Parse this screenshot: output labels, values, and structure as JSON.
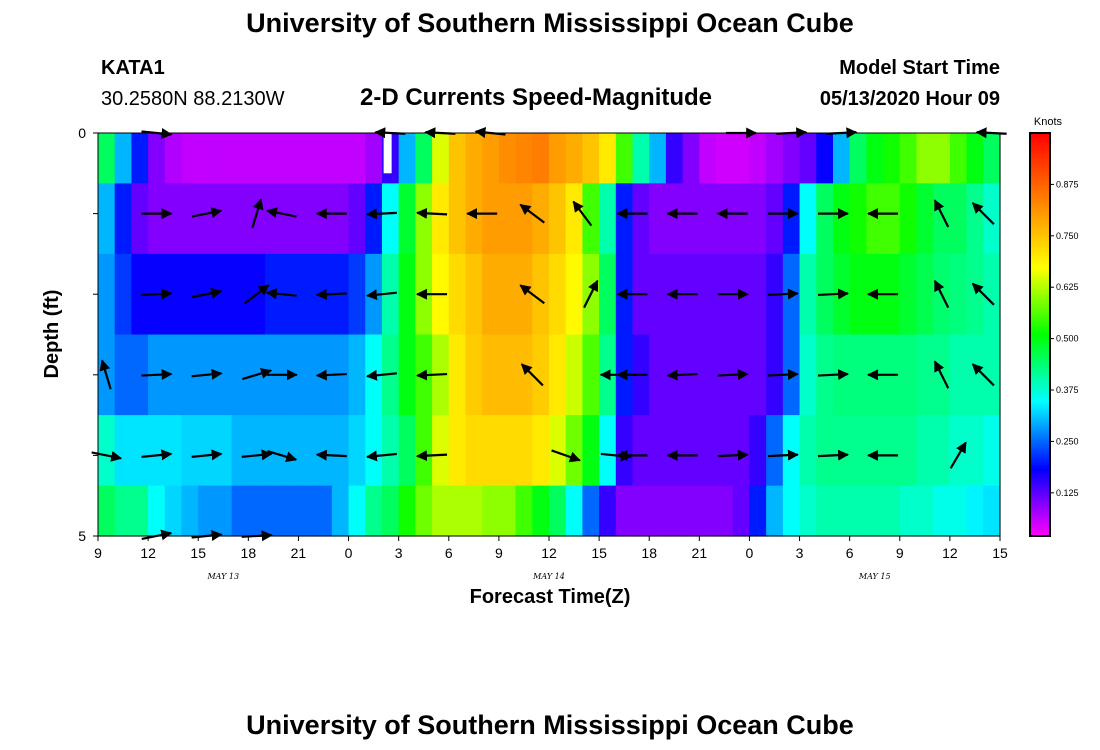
{
  "header": {
    "title": "University of Southern Mississippi Ocean Cube",
    "station": "KATA1",
    "location": "30.2580N 88.2130W",
    "subtitle": "2-D Currents Speed-Magnitude",
    "model_start_label": "Model Start Time",
    "model_start_value": "05/13/2020 Hour 09"
  },
  "footer": {
    "title": "University of Southern Mississippi Ocean Cube"
  },
  "chart_data": {
    "type": "heatmap",
    "title": "2-D Currents Speed-Magnitude",
    "xlabel": "Forecast Time(Z)",
    "ylabel": "Depth (ft)",
    "ylim": [
      0,
      5
    ],
    "xlim_hours": [
      0,
      54
    ],
    "x_ticks": [
      "9",
      "12",
      "15",
      "18",
      "21",
      "0",
      "3",
      "6",
      "9",
      "12",
      "15",
      "18",
      "21",
      "0",
      "3",
      "6",
      "9",
      "12",
      "15"
    ],
    "date_labels": [
      {
        "text": "MAY 13",
        "hour": 7.5
      },
      {
        "text": "MAY 14",
        "hour": 27
      },
      {
        "text": "MAY 15",
        "hour": 46.5
      }
    ],
    "y_tick_labels": [
      "0",
      "5"
    ],
    "y_tick_values": [
      0,
      1,
      2,
      3,
      4,
      5
    ],
    "colorbar": {
      "label": "Knots",
      "ticks": [
        "0.875",
        "0.750",
        "0.625",
        "0.500",
        "0.375",
        "0.250",
        "0.125"
      ],
      "tick_values": [
        0.875,
        0.75,
        0.625,
        0.5,
        0.375,
        0.25,
        0.125
      ],
      "range": [
        0.02,
        1.0
      ],
      "colors": [
        "#ff00ff",
        "#8000ff",
        "#0000ff",
        "#0080ff",
        "#00ffff",
        "#00ff80",
        "#00ff00",
        "#80ff00",
        "#ffff00",
        "#ffc000",
        "#ff8000",
        "#ff4000",
        "#ff0000"
      ]
    },
    "rows_depth_ft": [
      0.25,
      1.0,
      2.0,
      3.0,
      4.0,
      4.75
    ],
    "cells_per_row": 54,
    "speed_knots": [
      [
        0.45,
        0.3,
        0.2,
        0.1,
        0.07,
        0.06,
        0.06,
        0.06,
        0.06,
        0.06,
        0.06,
        0.06,
        0.06,
        0.06,
        0.06,
        0.06,
        0.08,
        0.15,
        0.3,
        0.45,
        0.65,
        0.75,
        0.78,
        0.8,
        0.82,
        0.83,
        0.84,
        0.8,
        0.78,
        0.75,
        0.7,
        0.55,
        0.4,
        0.3,
        0.15,
        0.1,
        0.06,
        0.05,
        0.05,
        0.06,
        0.08,
        0.1,
        0.12,
        0.18,
        0.3,
        0.45,
        0.5,
        0.52,
        0.55,
        0.6,
        0.6,
        0.55,
        0.5,
        0.45
      ],
      [
        0.3,
        0.2,
        0.12,
        0.1,
        0.1,
        0.1,
        0.1,
        0.1,
        0.1,
        0.1,
        0.1,
        0.1,
        0.1,
        0.1,
        0.1,
        0.12,
        0.2,
        0.35,
        0.48,
        0.6,
        0.7,
        0.75,
        0.78,
        0.8,
        0.8,
        0.8,
        0.78,
        0.75,
        0.7,
        0.55,
        0.4,
        0.2,
        0.12,
        0.1,
        0.1,
        0.1,
        0.1,
        0.1,
        0.1,
        0.1,
        0.12,
        0.2,
        0.35,
        0.45,
        0.5,
        0.52,
        0.55,
        0.55,
        0.52,
        0.48,
        0.45,
        0.45,
        0.42,
        0.38
      ],
      [
        0.28,
        0.22,
        0.18,
        0.18,
        0.18,
        0.18,
        0.18,
        0.18,
        0.18,
        0.18,
        0.2,
        0.2,
        0.2,
        0.2,
        0.2,
        0.22,
        0.28,
        0.4,
        0.5,
        0.6,
        0.68,
        0.72,
        0.75,
        0.78,
        0.78,
        0.78,
        0.75,
        0.72,
        0.68,
        0.6,
        0.45,
        0.2,
        0.12,
        0.12,
        0.12,
        0.12,
        0.12,
        0.12,
        0.12,
        0.12,
        0.15,
        0.25,
        0.4,
        0.45,
        0.48,
        0.5,
        0.5,
        0.5,
        0.48,
        0.46,
        0.44,
        0.43,
        0.42,
        0.4
      ],
      [
        0.28,
        0.25,
        0.25,
        0.28,
        0.28,
        0.28,
        0.28,
        0.28,
        0.28,
        0.28,
        0.28,
        0.28,
        0.28,
        0.28,
        0.28,
        0.3,
        0.35,
        0.42,
        0.5,
        0.55,
        0.62,
        0.7,
        0.74,
        0.76,
        0.76,
        0.76,
        0.74,
        0.7,
        0.64,
        0.56,
        0.42,
        0.2,
        0.15,
        0.12,
        0.12,
        0.12,
        0.12,
        0.12,
        0.12,
        0.12,
        0.15,
        0.25,
        0.38,
        0.42,
        0.43,
        0.43,
        0.43,
        0.43,
        0.43,
        0.42,
        0.42,
        0.4,
        0.4,
        0.4
      ],
      [
        0.38,
        0.33,
        0.33,
        0.33,
        0.33,
        0.32,
        0.32,
        0.32,
        0.3,
        0.3,
        0.3,
        0.3,
        0.3,
        0.3,
        0.3,
        0.32,
        0.35,
        0.4,
        0.45,
        0.55,
        0.65,
        0.7,
        0.72,
        0.72,
        0.72,
        0.72,
        0.7,
        0.65,
        0.58,
        0.5,
        0.35,
        0.15,
        0.12,
        0.12,
        0.12,
        0.12,
        0.12,
        0.12,
        0.12,
        0.15,
        0.25,
        0.35,
        0.4,
        0.42,
        0.42,
        0.42,
        0.42,
        0.42,
        0.42,
        0.4,
        0.4,
        0.38,
        0.38,
        0.36
      ],
      [
        0.45,
        0.42,
        0.42,
        0.35,
        0.32,
        0.3,
        0.28,
        0.28,
        0.25,
        0.25,
        0.25,
        0.25,
        0.25,
        0.25,
        0.3,
        0.35,
        0.42,
        0.45,
        0.52,
        0.58,
        0.62,
        0.62,
        0.62,
        0.6,
        0.6,
        0.55,
        0.5,
        0.45,
        0.35,
        0.25,
        0.15,
        0.1,
        0.1,
        0.1,
        0.1,
        0.1,
        0.1,
        0.1,
        0.12,
        0.2,
        0.3,
        0.35,
        0.38,
        0.4,
        0.4,
        0.4,
        0.4,
        0.4,
        0.38,
        0.38,
        0.36,
        0.36,
        0.34,
        0.33
      ]
    ],
    "vectors": [
      {
        "hour": 3.5,
        "depth": 0.0,
        "u": 1,
        "v": -0.1
      },
      {
        "hour": 17.5,
        "depth": 0.0,
        "u": -1,
        "v": 0.05
      },
      {
        "hour": 20.5,
        "depth": 0.0,
        "u": -1,
        "v": 0.05
      },
      {
        "hour": 23.5,
        "depth": 0.0,
        "u": -1,
        "v": 0.1
      },
      {
        "hour": 38.5,
        "depth": 0.0,
        "u": 1,
        "v": 0
      },
      {
        "hour": 41.5,
        "depth": 0.0,
        "u": 1,
        "v": 0.05
      },
      {
        "hour": 44.5,
        "depth": 0.0,
        "u": 1,
        "v": 0.05
      },
      {
        "hour": 53.5,
        "depth": 0.0,
        "u": -1,
        "v": 0.05
      },
      {
        "hour": 3.5,
        "depth": 1.0,
        "u": 1,
        "v": 0
      },
      {
        "hour": 6.5,
        "depth": 1.0,
        "u": 1,
        "v": 0.2
      },
      {
        "hour": 9.5,
        "depth": 1.0,
        "u": 0.3,
        "v": 1
      },
      {
        "hour": 11,
        "depth": 1.0,
        "u": -1,
        "v": 0.2
      },
      {
        "hour": 14,
        "depth": 1.0,
        "u": -1,
        "v": 0
      },
      {
        "hour": 17,
        "depth": 1.0,
        "u": -1,
        "v": -0.05
      },
      {
        "hour": 20,
        "depth": 1.0,
        "u": -1,
        "v": 0.05
      },
      {
        "hour": 23,
        "depth": 1.0,
        "u": -1,
        "v": 0
      },
      {
        "hour": 26,
        "depth": 1.0,
        "u": -0.8,
        "v": 0.6
      },
      {
        "hour": 29,
        "depth": 1.0,
        "u": -0.6,
        "v": 0.8
      },
      {
        "hour": 32,
        "depth": 1.0,
        "u": -1,
        "v": 0
      },
      {
        "hour": 35,
        "depth": 1.0,
        "u": -1,
        "v": 0
      },
      {
        "hour": 38,
        "depth": 1.0,
        "u": -1,
        "v": 0
      },
      {
        "hour": 41,
        "depth": 1.0,
        "u": 1,
        "v": 0
      },
      {
        "hour": 44,
        "depth": 1.0,
        "u": 1,
        "v": 0
      },
      {
        "hour": 47,
        "depth": 1.0,
        "u": -1,
        "v": 0
      },
      {
        "hour": 50.5,
        "depth": 1.0,
        "u": -0.45,
        "v": 0.9
      },
      {
        "hour": 53,
        "depth": 1.0,
        "u": -0.7,
        "v": 0.7
      },
      {
        "hour": 3.5,
        "depth": 2.0,
        "u": 1,
        "v": 0.05
      },
      {
        "hour": 6.5,
        "depth": 2.0,
        "u": 1,
        "v": 0.2
      },
      {
        "hour": 9.5,
        "depth": 2.0,
        "u": 0.8,
        "v": 0.6
      },
      {
        "hour": 11,
        "depth": 2.0,
        "u": -1,
        "v": 0.1
      },
      {
        "hour": 14,
        "depth": 2.0,
        "u": -1,
        "v": -0.05
      },
      {
        "hour": 17,
        "depth": 2.0,
        "u": -1,
        "v": -0.1
      },
      {
        "hour": 20,
        "depth": 2.0,
        "u": -1,
        "v": 0
      },
      {
        "hour": 26,
        "depth": 2.0,
        "u": -0.8,
        "v": 0.6
      },
      {
        "hour": 29.5,
        "depth": 2.0,
        "u": 0.45,
        "v": 0.9
      },
      {
        "hour": 32,
        "depth": 2.0,
        "u": -1,
        "v": 0
      },
      {
        "hour": 35,
        "depth": 2.0,
        "u": -1,
        "v": 0
      },
      {
        "hour": 38,
        "depth": 2.0,
        "u": 1,
        "v": 0
      },
      {
        "hour": 41,
        "depth": 2.0,
        "u": 1,
        "v": 0.05
      },
      {
        "hour": 44,
        "depth": 2.0,
        "u": 1,
        "v": 0.05
      },
      {
        "hour": 47,
        "depth": 2.0,
        "u": -1,
        "v": 0
      },
      {
        "hour": 50.5,
        "depth": 2.0,
        "u": -0.45,
        "v": 0.9
      },
      {
        "hour": 53,
        "depth": 2.0,
        "u": -0.7,
        "v": 0.7
      },
      {
        "hour": 0.5,
        "depth": 3.0,
        "u": -0.3,
        "v": 1
      },
      {
        "hour": 3.5,
        "depth": 3.0,
        "u": 1,
        "v": 0.05
      },
      {
        "hour": 6.5,
        "depth": 3.0,
        "u": 1,
        "v": 0.1
      },
      {
        "hour": 9.5,
        "depth": 3.0,
        "u": 1,
        "v": 0.3
      },
      {
        "hour": 11,
        "depth": 3.0,
        "u": 1,
        "v": 0
      },
      {
        "hour": 14,
        "depth": 3.0,
        "u": -1,
        "v": -0.05
      },
      {
        "hour": 17,
        "depth": 3.0,
        "u": -1,
        "v": -0.1
      },
      {
        "hour": 20,
        "depth": 3.0,
        "u": -1,
        "v": -0.05
      },
      {
        "hour": 26,
        "depth": 3.0,
        "u": -0.7,
        "v": 0.7
      },
      {
        "hour": 31,
        "depth": 3.0,
        "u": -1,
        "v": 0
      },
      {
        "hour": 32,
        "depth": 3.0,
        "u": -1,
        "v": 0
      },
      {
        "hour": 35,
        "depth": 3.0,
        "u": -1,
        "v": -0.05
      },
      {
        "hour": 38,
        "depth": 3.0,
        "u": 1,
        "v": 0.05
      },
      {
        "hour": 41,
        "depth": 3.0,
        "u": 1,
        "v": 0.05
      },
      {
        "hour": 44,
        "depth": 3.0,
        "u": 1,
        "v": 0.05
      },
      {
        "hour": 47,
        "depth": 3.0,
        "u": -1,
        "v": 0
      },
      {
        "hour": 50.5,
        "depth": 3.0,
        "u": -0.45,
        "v": 0.9
      },
      {
        "hour": 53,
        "depth": 3.0,
        "u": -0.7,
        "v": 0.7
      },
      {
        "hour": 0.5,
        "depth": 4.0,
        "u": 1,
        "v": -0.2
      },
      {
        "hour": 3.5,
        "depth": 4.0,
        "u": 1,
        "v": 0.1
      },
      {
        "hour": 6.5,
        "depth": 4.0,
        "u": 1,
        "v": 0.1
      },
      {
        "hour": 9.5,
        "depth": 4.0,
        "u": 1,
        "v": 0.1
      },
      {
        "hour": 11,
        "depth": 4.0,
        "u": 1,
        "v": -0.3
      },
      {
        "hour": 14,
        "depth": 4.0,
        "u": -1,
        "v": 0.05
      },
      {
        "hour": 17,
        "depth": 4.0,
        "u": -1,
        "v": -0.1
      },
      {
        "hour": 20,
        "depth": 4.0,
        "u": -1,
        "v": -0.05
      },
      {
        "hour": 28,
        "depth": 4.0,
        "u": 1,
        "v": -0.35
      },
      {
        "hour": 31,
        "depth": 4.0,
        "u": 1,
        "v": -0.1
      },
      {
        "hour": 32,
        "depth": 4.0,
        "u": -1,
        "v": 0
      },
      {
        "hour": 35,
        "depth": 4.0,
        "u": -1,
        "v": 0
      },
      {
        "hour": 38,
        "depth": 4.0,
        "u": 1,
        "v": 0.05
      },
      {
        "hour": 41,
        "depth": 4.0,
        "u": 1,
        "v": 0.05
      },
      {
        "hour": 44,
        "depth": 4.0,
        "u": 1,
        "v": 0.05
      },
      {
        "hour": 47,
        "depth": 4.0,
        "u": -1,
        "v": 0
      },
      {
        "hour": 51.5,
        "depth": 4.0,
        "u": 0.5,
        "v": 0.85
      },
      {
        "hour": 3.5,
        "depth": 5.0,
        "u": 1,
        "v": 0.2
      },
      {
        "hour": 6.5,
        "depth": 5.0,
        "u": 1,
        "v": 0.1
      },
      {
        "hour": 9.5,
        "depth": 5.0,
        "u": 1,
        "v": 0.05
      }
    ],
    "data_gap": {
      "hour": 17.1,
      "depth_from": 0,
      "depth_to": 0.5
    }
  }
}
